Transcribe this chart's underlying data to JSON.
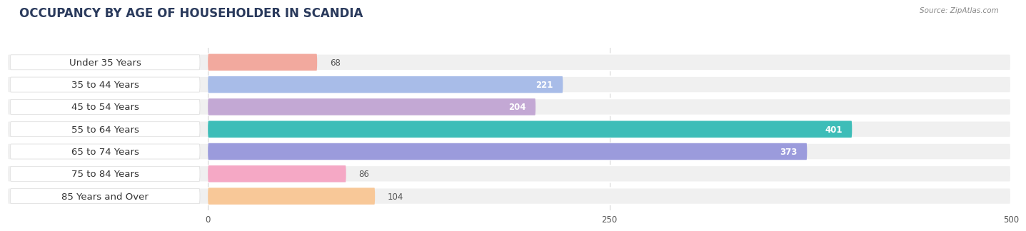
{
  "title": "OCCUPANCY BY AGE OF HOUSEHOLDER IN SCANDIA",
  "source": "Source: ZipAtlas.com",
  "categories": [
    "Under 35 Years",
    "35 to 44 Years",
    "45 to 54 Years",
    "55 to 64 Years",
    "65 to 74 Years",
    "75 to 84 Years",
    "85 Years and Over"
  ],
  "values": [
    68,
    221,
    204,
    401,
    373,
    86,
    104
  ],
  "bar_colors": [
    "#f2a99e",
    "#a8bce8",
    "#c3a8d4",
    "#3dbdb8",
    "#9b9bdc",
    "#f5a8c5",
    "#f8c898"
  ],
  "bar_bg_colors": [
    "#f0eded",
    "#ededf5",
    "#edeaf2",
    "#eaf5f5",
    "#eaeaf5",
    "#f5eaed",
    "#f5f0e8"
  ],
  "row_bg_color": "#f0f0f0",
  "xlim_min": -125,
  "xlim_max": 500,
  "xticks": [
    0,
    250,
    500
  ],
  "title_fontsize": 12,
  "label_fontsize": 9.5,
  "value_fontsize": 8.5,
  "bar_height": 0.75,
  "background_color": "#ffffff",
  "title_color": "#2a3a5c",
  "source_color": "#888888",
  "label_color": "#333333",
  "value_color_inside": "#ffffff",
  "value_color_outside": "#555555",
  "inside_threshold": 150
}
